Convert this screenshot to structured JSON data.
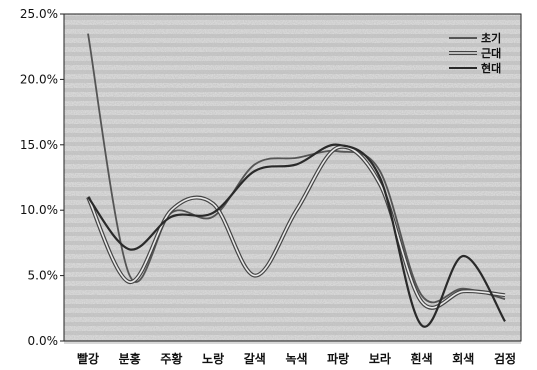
{
  "chart_data": {
    "type": "line",
    "categories": [
      "빨강",
      "분홍",
      "주황",
      "노랑",
      "갈색",
      "녹색",
      "파랑",
      "보라",
      "흰색",
      "회색",
      "검정"
    ],
    "ylim": [
      0,
      25
    ],
    "yticks": [
      "0.0%",
      "5.0%",
      "10.0%",
      "15.0%",
      "20.0%",
      "25.0%"
    ],
    "legend_position": "top-right",
    "grid": false,
    "background": "noisy-striped",
    "series": [
      {
        "name": "초기",
        "color": "#555555",
        "values": [
          23.5,
          5.0,
          9.8,
          9.5,
          13.5,
          14.0,
          14.5,
          13.0,
          3.5,
          4.0,
          3.2
        ]
      },
      {
        "name": "근대",
        "color": "#888888",
        "values": [
          11.0,
          4.5,
          10.0,
          10.5,
          5.0,
          10.0,
          14.8,
          12.0,
          3.0,
          3.8,
          3.5
        ]
      },
      {
        "name": "현대",
        "color": "#2a2a2a",
        "values": [
          11.0,
          7.0,
          9.5,
          9.8,
          13.0,
          13.5,
          15.0,
          12.5,
          1.2,
          6.5,
          1.5
        ]
      }
    ]
  }
}
